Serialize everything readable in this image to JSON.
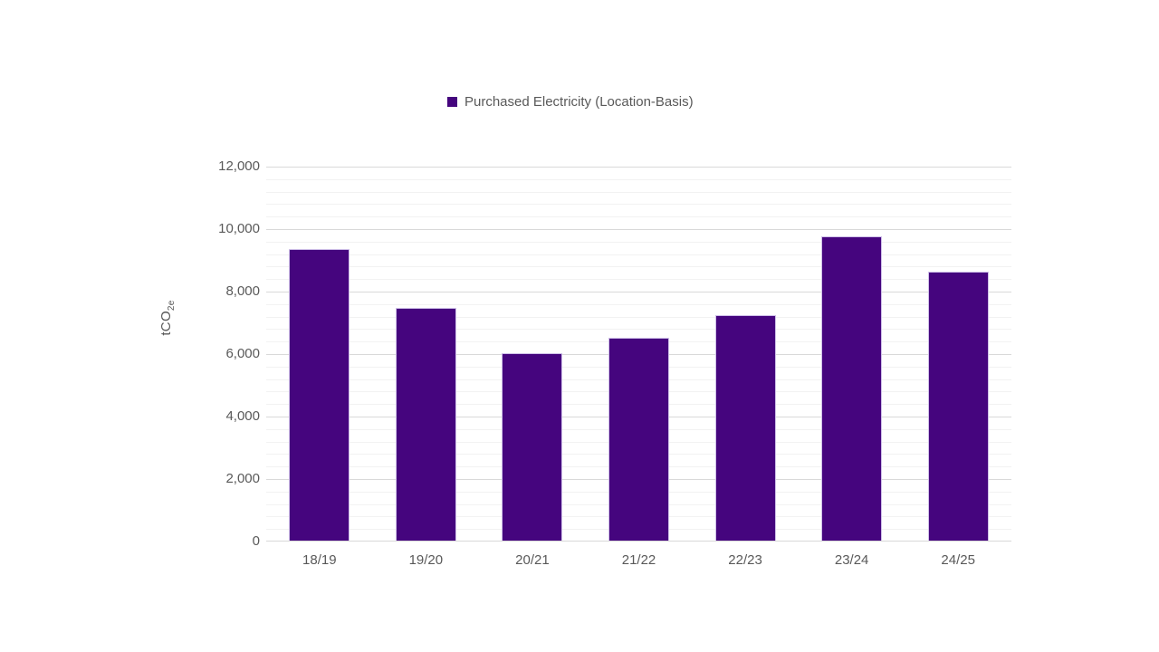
{
  "chart_data": {
    "type": "bar",
    "title": "",
    "legend": [
      "Purchased Electricity (Location-Basis)"
    ],
    "legend_position": "top-center",
    "categories": [
      "18/19",
      "19/20",
      "20/21",
      "21/22",
      "22/23",
      "23/24",
      "24/25"
    ],
    "series": [
      {
        "name": "Purchased Electricity (Location-Basis)",
        "values": [
          9320,
          7450,
          6000,
          6500,
          7230,
          9730,
          8620
        ]
      }
    ],
    "xlabel": "",
    "ylabel": "tCO2e",
    "ylabel_base": "tCO",
    "ylabel_sub": "2e",
    "ylim": [
      0,
      12000
    ],
    "y_major_unit": 2000,
    "y_minor_unit": 400,
    "ytick_values": [
      0,
      2000,
      4000,
      6000,
      8000,
      10000,
      12000
    ],
    "ytick_labels": [
      "0",
      "2,000",
      "4,000",
      "6,000",
      "8,000",
      "10,000",
      "12,000"
    ],
    "grid": "horizontal major and minor gridlines on",
    "bar_color": "#45057E",
    "gridline_major_color": "#d9d9d9",
    "gridline_minor_color": "#f2f2f2",
    "text_color": "#595959"
  }
}
